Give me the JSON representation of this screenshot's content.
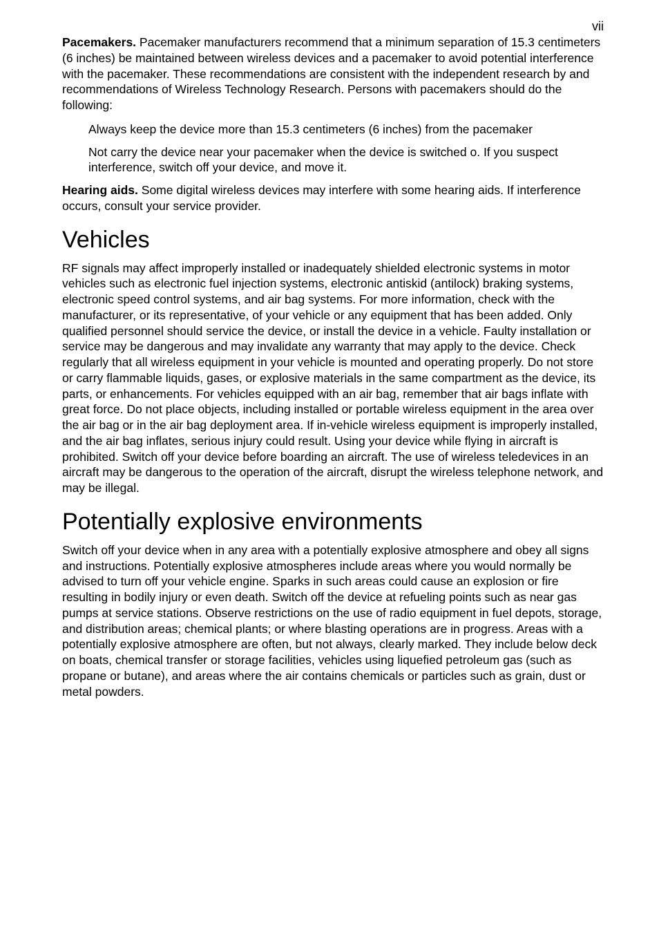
{
  "pageNumber": "vii",
  "p1_bold": "Pacemakers.",
  "p1_rest": " Pacemaker manufacturers recommend that a minimum separation of 15.3 centimeters (6 inches) be maintained between wireless devices and a pacemaker to avoid potential interference with the pacemaker. These recommendations are consistent with the independent research by and recommendations of Wireless Technology Research. Persons with pacemakers should do the following:",
  "indent1": "Always keep the device more than 15.3 centimeters (6 inches) from the pacemaker",
  "indent2": "Not carry the device near your pacemaker when the device is switched o. If you suspect interference, switch off your device, and move it.",
  "p2_bold": "Hearing aids.",
  "p2_rest": "  Some digital wireless devices may interfere with some hearing aids. If interference occurs, consult your service provider.",
  "h_vehicles": "Vehicles",
  "p_vehicles": "RF signals may affect improperly installed or inadequately shielded electronic systems in motor vehicles such as electronic fuel injection systems, electronic antiskid (antilock) braking systems, electronic speed control systems, and air bag systems. For more information, check with the manufacturer, or its representative, of your vehicle or any equipment that has been added. Only qualified personnel should service the device, or install the device in a vehicle. Faulty installation or service may be dangerous and may invalidate any warranty that may apply to the device. Check regularly that all wireless equipment in your vehicle is mounted and operating properly. Do not store or carry flammable liquids, gases, or explosive materials in the same compartment as the device, its parts, or enhancements. For vehicles equipped with an air bag, remember that air bags inflate with great force. Do not place objects, including installed or portable wireless equipment in the area over the air bag or in the air bag deployment area. If in-vehicle wireless equipment is improperly installed, and the air bag inflates, serious injury could result. Using your device while flying in aircraft is prohibited. Switch off your device before boarding an aircraft. The use of wireless teledevices in an aircraft may be dangerous to the operation of the aircraft, disrupt the wireless telephone network, and may be illegal.",
  "h_explosive": "Potentially explosive environments",
  "p_explosive": "Switch off your device when in any area with a potentially explosive atmosphere and obey all signs and instructions. Potentially explosive atmospheres include areas where you would normally be advised to turn off your vehicle engine. Sparks in such areas could cause an explosion or fire resulting in bodily injury or even death. Switch off the device at refueling points such as near gas pumps at service stations. Observe restrictions on the use of radio equipment in fuel depots, storage, and distribution areas; chemical plants; or where blasting operations are in progress. Areas with a potentially explosive atmosphere are often, but not always, clearly marked. They include below deck on boats, chemical transfer or storage facilities, vehicles using liquefied petroleum gas (such as propane or butane), and areas where the air contains chemicals or particles such as grain, dust or metal powders."
}
